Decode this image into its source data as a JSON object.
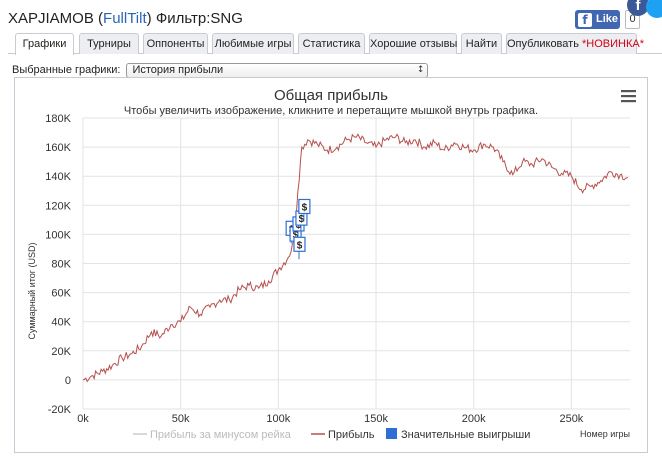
{
  "header": {
    "player": "XAPJIAMOB",
    "site": "FullTilt",
    "filter_label": "Фильтр:",
    "filter_value": "SNG",
    "fb_like_label": "Like",
    "like_count": "0"
  },
  "tabs": [
    {
      "label": "Графики",
      "active": true
    },
    {
      "label": "Турниры",
      "active": false
    },
    {
      "label": "Оппоненты",
      "active": false
    },
    {
      "label": "Любимые игры",
      "active": false
    },
    {
      "label": "Статистика",
      "active": false
    },
    {
      "label": "Хорошие отзывы",
      "active": false
    },
    {
      "label": "Найти",
      "active": false
    },
    {
      "label": "Опубликовать",
      "badge": "*НОВИНКА*",
      "active": false
    }
  ],
  "selector": {
    "label": "Выбранные графики:",
    "value": "История прибыли"
  },
  "chart_menu_icon": "hamburger-menu-icon",
  "colors": {
    "profit_line": "#b5504f",
    "rake_line": "#cccccc",
    "big_win": "#2f6fd1",
    "title": "#333333",
    "new_badge": "#d0021b",
    "link_site": "#2a64b8"
  },
  "chart_data": {
    "type": "line",
    "title": "Общая прибыль",
    "subtitle": "Чтобы увеличить изображение, кликните и перетащите мышкой внутрь графика.",
    "xlabel": "Номер игры",
    "ylabel": "Суммарный итог (USD)",
    "xlim": [
      0,
      280000
    ],
    "ylim": [
      -20000,
      180000
    ],
    "x_ticks": [
      0,
      50000,
      100000,
      150000,
      200000,
      250000
    ],
    "x_tick_labels": [
      "0k",
      "50k",
      "100k",
      "150k",
      "200k",
      "250k"
    ],
    "y_ticks": [
      -20000,
      0,
      20000,
      40000,
      60000,
      80000,
      100000,
      120000,
      140000,
      160000,
      180000
    ],
    "y_tick_labels": [
      "-20K",
      "0",
      "20K",
      "40K",
      "60K",
      "80K",
      "100K",
      "120K",
      "140K",
      "160K",
      "180K"
    ],
    "grid": true,
    "legend_position": "bottom",
    "series": [
      {
        "name": "Прибыль за минусом рейка",
        "visible": false,
        "x": [],
        "y": []
      },
      {
        "name": "Прибыль",
        "visible": true,
        "x": [
          0,
          5000,
          10000,
          15000,
          20000,
          25000,
          30000,
          35000,
          40000,
          45000,
          50000,
          55000,
          60000,
          65000,
          70000,
          75000,
          80000,
          85000,
          90000,
          95000,
          100000,
          105000,
          108000,
          110000,
          112000,
          115000,
          120000,
          125000,
          130000,
          135000,
          140000,
          145000,
          150000,
          155000,
          160000,
          165000,
          170000,
          175000,
          180000,
          185000,
          190000,
          195000,
          200000,
          205000,
          210000,
          215000,
          220000,
          225000,
          230000,
          235000,
          240000,
          245000,
          250000,
          255000,
          260000,
          265000,
          270000,
          275000,
          279000
        ],
        "y": [
          0,
          3000,
          6000,
          10000,
          15000,
          18000,
          23000,
          33000,
          30000,
          38000,
          40000,
          50000,
          45000,
          50000,
          55000,
          55000,
          62000,
          65000,
          63000,
          68000,
          76000,
          84000,
          95000,
          130000,
          160000,
          165000,
          162000,
          158000,
          160000,
          165000,
          167000,
          163000,
          160000,
          165000,
          167000,
          163000,
          165000,
          160000,
          163000,
          158000,
          163000,
          160000,
          158000,
          162000,
          160000,
          150000,
          141000,
          150000,
          148000,
          152000,
          146000,
          142000,
          140000,
          131000,
          133000,
          137000,
          143000,
          141000,
          139000
        ]
      }
    ],
    "big_wins": {
      "name": "Значительные выигрыши",
      "label": "$",
      "points": [
        {
          "x": 104000,
          "y": 109000
        },
        {
          "x": 106000,
          "y": 105000
        },
        {
          "x": 107500,
          "y": 112000
        },
        {
          "x": 108000,
          "y": 98000
        },
        {
          "x": 109000,
          "y": 116000
        },
        {
          "x": 110500,
          "y": 124000
        }
      ]
    }
  }
}
